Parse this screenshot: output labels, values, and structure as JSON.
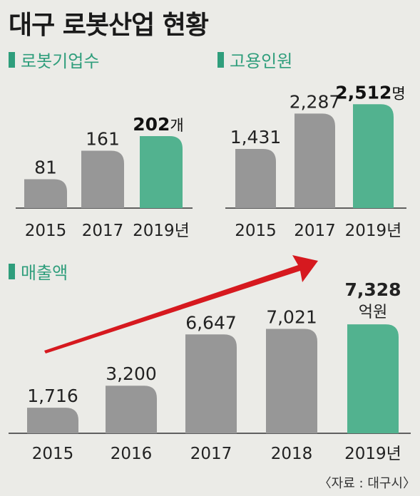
{
  "title": "대구 로봇산업 현황",
  "source": "〈자료 : 대구시〉",
  "colors": {
    "bar_past": "#979797",
    "bar_current": "#52b28f",
    "accent": "#2f9e7c",
    "arrow": "#d6191f"
  },
  "chart_data": [
    {
      "type": "bar",
      "title": "로봇기업수",
      "categories": [
        "2015",
        "2017",
        "2019년"
      ],
      "values": [
        81,
        161,
        202
      ],
      "value_labels": [
        "81",
        "161",
        "202"
      ],
      "unit": "개"
    },
    {
      "type": "bar",
      "title": "고용인원",
      "categories": [
        "2015",
        "2017",
        "2019년"
      ],
      "values": [
        1431,
        2287,
        2512
      ],
      "value_labels": [
        "1,431",
        "2,287",
        "2,512"
      ],
      "unit": "명"
    },
    {
      "type": "bar",
      "title": "매출액",
      "categories": [
        "2015",
        "2016",
        "2017",
        "2018",
        "2019년"
      ],
      "values": [
        1716,
        3200,
        6647,
        7021,
        7328
      ],
      "value_labels": [
        "1,716",
        "3,200",
        "6,647",
        "7,021",
        "7,328"
      ],
      "unit": "억원"
    }
  ]
}
